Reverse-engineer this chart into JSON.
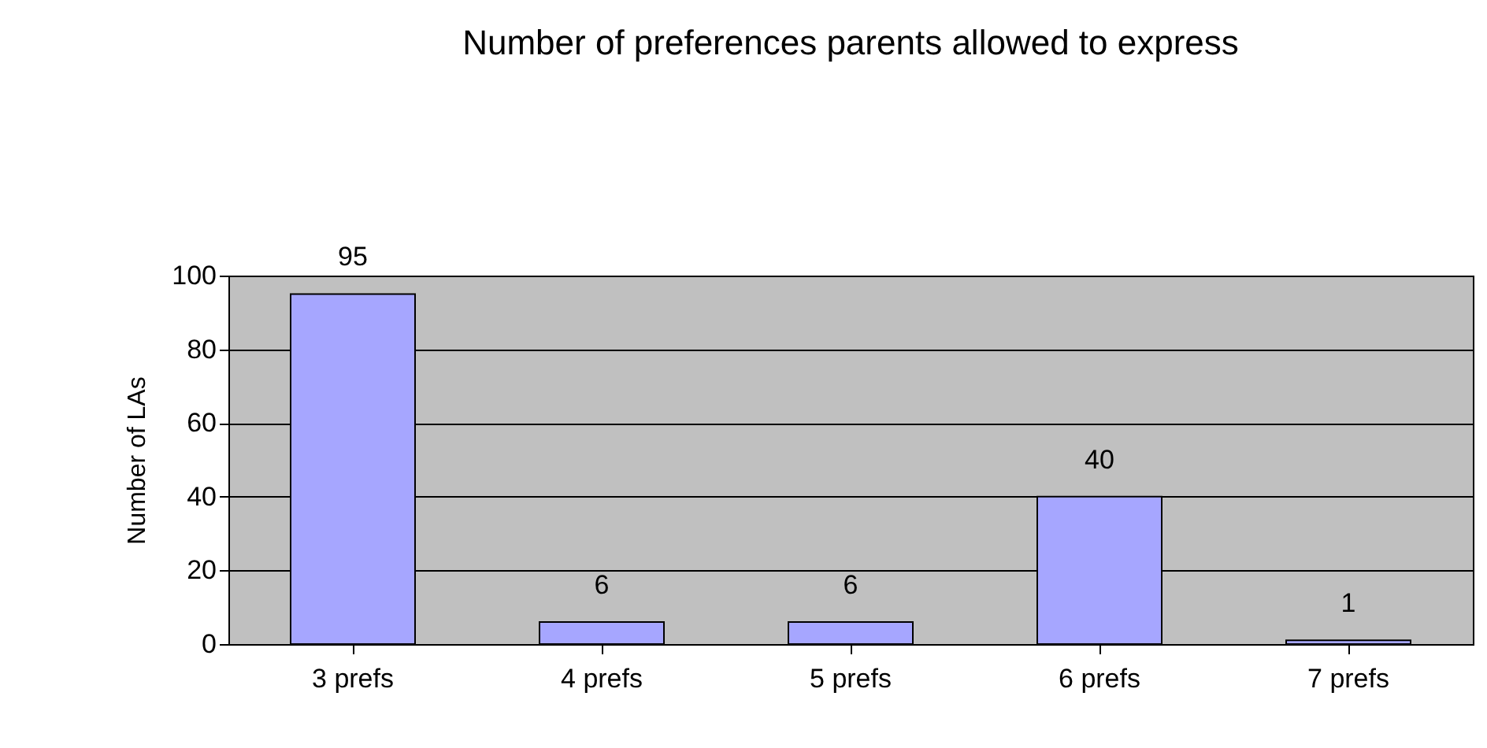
{
  "chart_data": {
    "type": "bar",
    "title": "Number of preferences parents allowed to express",
    "ylabel": "Number of LAs",
    "categories": [
      "3 prefs",
      "4 prefs",
      "5 prefs",
      "6 prefs",
      "7 prefs"
    ],
    "values": [
      95,
      6,
      6,
      40,
      1
    ],
    "color": "#a6a6ff",
    "ylim": [
      0,
      100
    ],
    "yticks": [
      0,
      20,
      40,
      60,
      80,
      100
    ],
    "grid": "y",
    "data_labels": true
  }
}
